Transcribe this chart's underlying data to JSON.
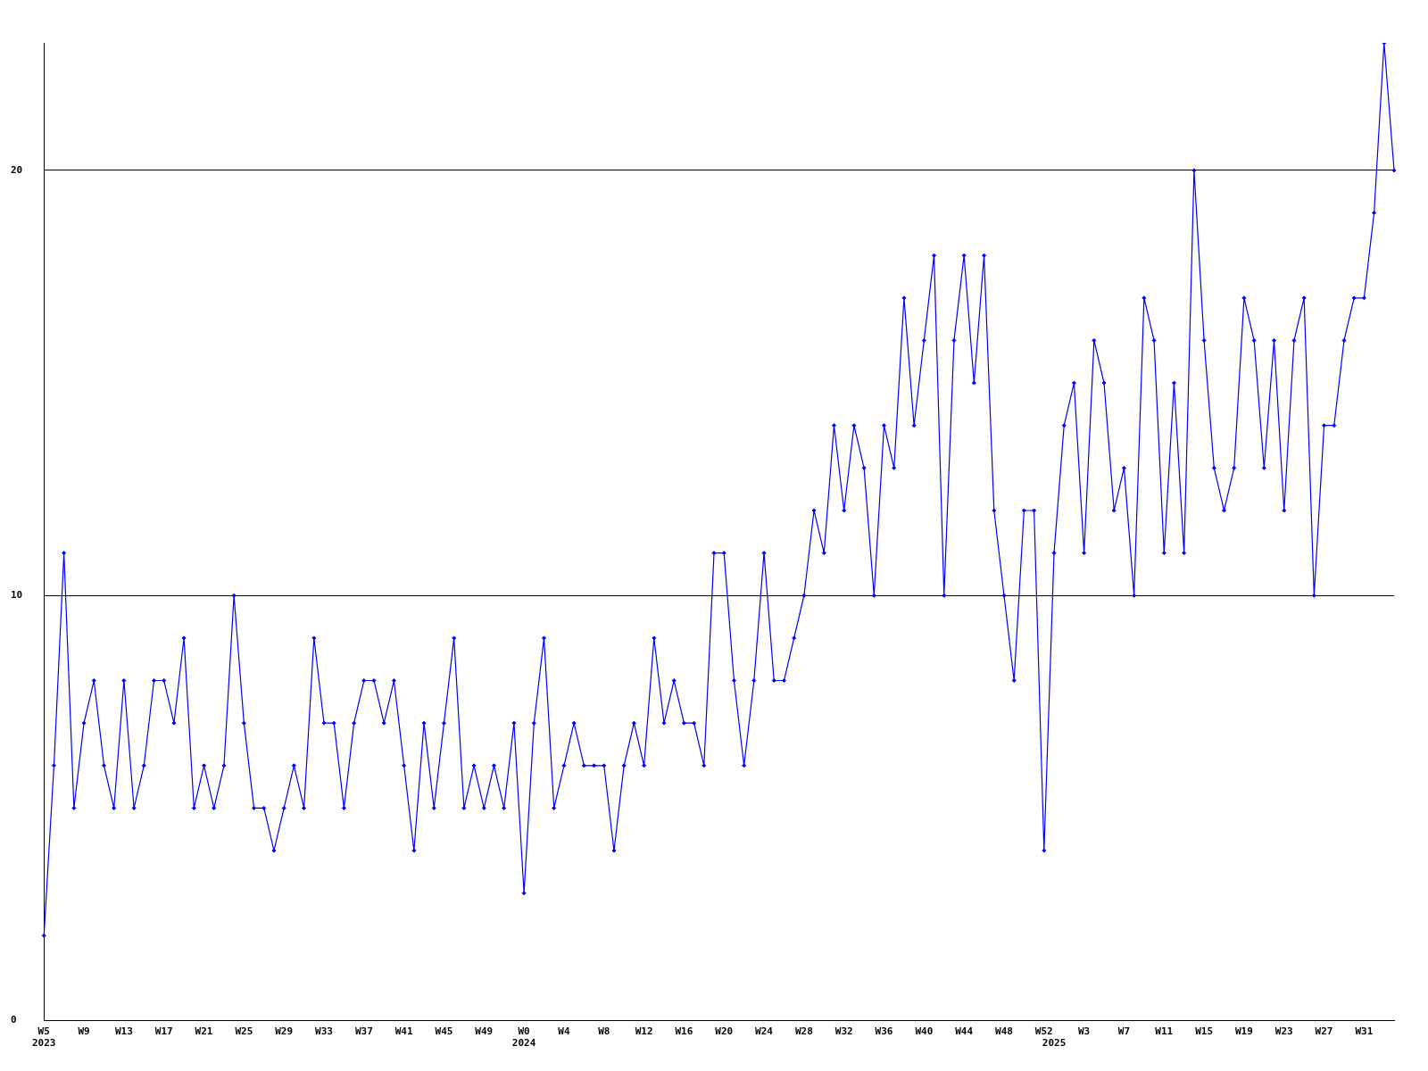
{
  "chart_data": {
    "type": "line",
    "categories": [
      "W5\n2023",
      null,
      null,
      null,
      "W9",
      null,
      null,
      null,
      "W13",
      null,
      null,
      null,
      "W17",
      null,
      null,
      null,
      "W21",
      null,
      null,
      null,
      "W25",
      null,
      null,
      null,
      "W29",
      null,
      null,
      null,
      "W33",
      null,
      null,
      null,
      "W37",
      null,
      null,
      null,
      "W41",
      null,
      null,
      null,
      "W45",
      null,
      null,
      null,
      "W49",
      null,
      null,
      null,
      "W0\n2024",
      null,
      null,
      null,
      "W4",
      null,
      null,
      null,
      "W8",
      null,
      null,
      null,
      "W12",
      null,
      null,
      null,
      "W16",
      null,
      null,
      null,
      "W20",
      null,
      null,
      null,
      "W24",
      null,
      null,
      null,
      "W28",
      null,
      null,
      null,
      "W32",
      null,
      null,
      null,
      "W36",
      null,
      null,
      null,
      "W40",
      null,
      null,
      null,
      "W44",
      null,
      null,
      null,
      "W48",
      null,
      null,
      null,
      "W52",
      "\n2025",
      null,
      null,
      "W3",
      null,
      null,
      null,
      "W7",
      null,
      null,
      null,
      "W11",
      null,
      null,
      null,
      "W15",
      null,
      null,
      null,
      "W19",
      null,
      null,
      null,
      "W23",
      null,
      null,
      null,
      "W27",
      null,
      null,
      null,
      "W31",
      null,
      null,
      null
    ],
    "series": [
      {
        "color": "#0000ff",
        "values": [
          2,
          6,
          11,
          5,
          7,
          8,
          6,
          5,
          8,
          5,
          6,
          8,
          8,
          7,
          9,
          5,
          6,
          5,
          6,
          10,
          7,
          5,
          5,
          4,
          5,
          6,
          5,
          9,
          7,
          7,
          5,
          7,
          8,
          8,
          7,
          8,
          6,
          4,
          7,
          5,
          7,
          9,
          5,
          6,
          5,
          6,
          5,
          7,
          3,
          7,
          9,
          5,
          6,
          7,
          6,
          6,
          6,
          4,
          6,
          7,
          6,
          9,
          7,
          8,
          7,
          7,
          6,
          11,
          11,
          8,
          6,
          8,
          11,
          8,
          8,
          9,
          10,
          12,
          11,
          14,
          12,
          14,
          13,
          10,
          14,
          13,
          17,
          14,
          16,
          18,
          10,
          16,
          18,
          15,
          18,
          12,
          10,
          8,
          12,
          12,
          4,
          11,
          14,
          15,
          11,
          16,
          15,
          12,
          13,
          10,
          17,
          16,
          11,
          15,
          11,
          20,
          16,
          13,
          12,
          13,
          17,
          16,
          13,
          16,
          12,
          16,
          17,
          10,
          14,
          14,
          16,
          17,
          17,
          19,
          23,
          20
        ]
      }
    ],
    "ylim": [
      0,
      23
    ],
    "yticks": [
      0,
      10,
      20
    ],
    "grid": "y",
    "marker": "diamond",
    "line_style": "solid",
    "legend": false
  }
}
